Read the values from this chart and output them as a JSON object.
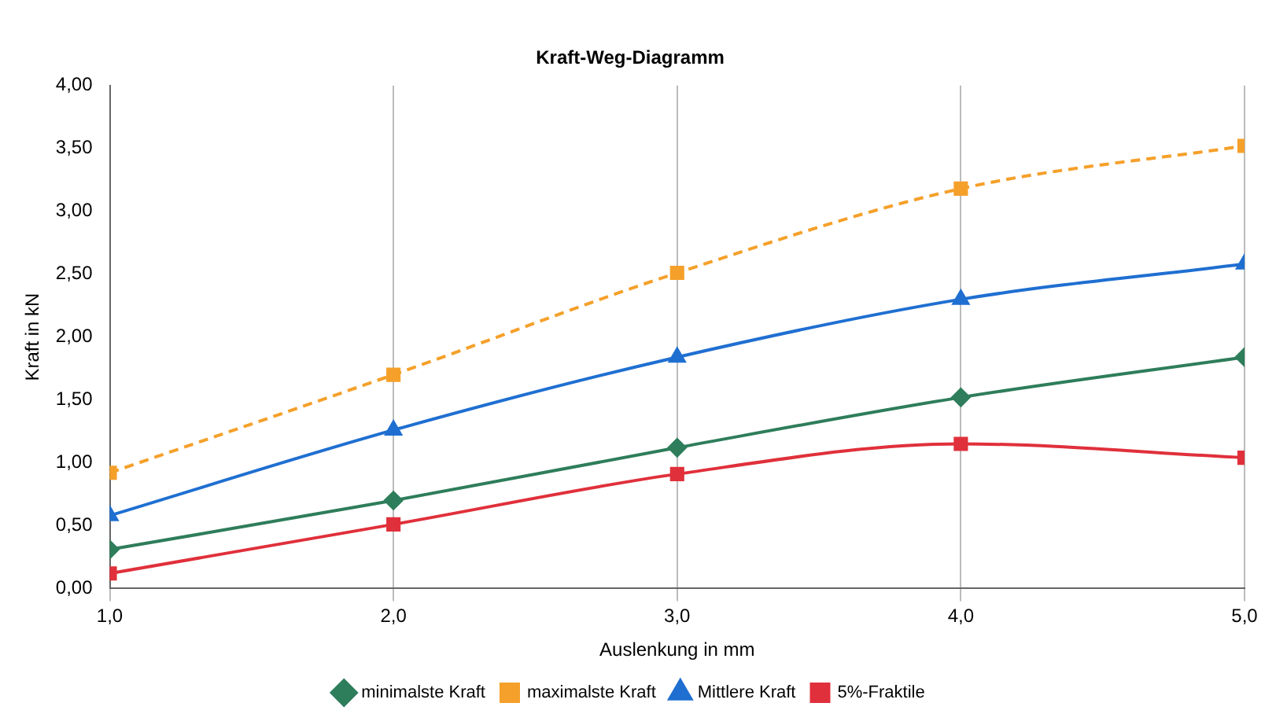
{
  "chart_data": {
    "type": "line",
    "title": "Kraft-Weg-Diagramm",
    "xlabel": "Auslenkung in mm",
    "ylabel": "Kraft in kN",
    "x": [
      1,
      2,
      3,
      4,
      5
    ],
    "xlim": [
      1,
      5
    ],
    "xticks": [
      {
        "value": 1,
        "label": "1,0"
      },
      {
        "value": 2,
        "label": "2,0"
      },
      {
        "value": 3,
        "label": "3,0"
      },
      {
        "value": 4,
        "label": "4,0"
      },
      {
        "value": 5,
        "label": "5,0"
      }
    ],
    "ylim": [
      0,
      4
    ],
    "yticks": [
      {
        "value": 0,
        "label": "0,00"
      },
      {
        "value": 0.5,
        "label": "0,50"
      },
      {
        "value": 1,
        "label": "1,00"
      },
      {
        "value": 1.5,
        "label": "1,50"
      },
      {
        "value": 2,
        "label": "2,00"
      },
      {
        "value": 2.5,
        "label": "2,50"
      },
      {
        "value": 3,
        "label": "3,00"
      },
      {
        "value": 3.5,
        "label": "3,50"
      },
      {
        "value": 4,
        "label": "4,00"
      }
    ],
    "grid": "x",
    "legend": "bottom",
    "series": [
      {
        "name": "minimalste Kraft",
        "color": "#2e7d5b",
        "marker": "diamond",
        "line_style": "solid",
        "values": [
          0.31,
          0.7,
          1.12,
          1.52,
          1.84
        ]
      },
      {
        "name": "maximalste Kraft",
        "color": "#f5a02a",
        "marker": "square",
        "line_style": "dashed",
        "values": [
          0.92,
          1.7,
          2.51,
          3.18,
          3.52
        ]
      },
      {
        "name": "Mittlere Kraft",
        "color": "#1f6fd1",
        "marker": "triangle",
        "line_style": "solid",
        "values": [
          0.58,
          1.26,
          1.84,
          2.3,
          2.58
        ]
      },
      {
        "name": "5%-Fraktile",
        "color": "#e0303b",
        "marker": "square",
        "line_style": "solid",
        "values": [
          0.12,
          0.51,
          0.91,
          1.15,
          1.04
        ]
      }
    ]
  }
}
